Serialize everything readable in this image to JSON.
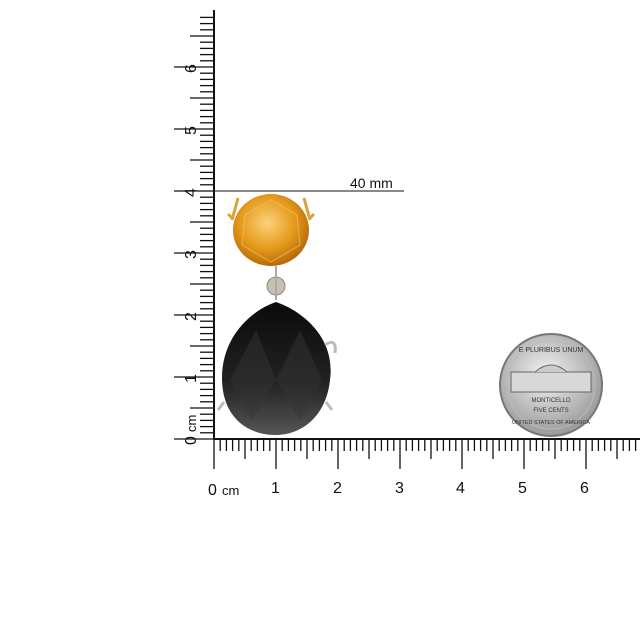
{
  "horizontal_ruler": {
    "unit_label": "cm",
    "labels": [
      "0",
      "1",
      "2",
      "3",
      "4",
      "5",
      "6"
    ]
  },
  "vertical_ruler": {
    "unit_label": "cm",
    "labels": [
      "0",
      "1",
      "2",
      "3",
      "4",
      "5",
      "6"
    ]
  },
  "measurement": {
    "label": "40 mm",
    "value_mm": 40
  },
  "coin": {
    "top_text": "E PLURIBUS UNUM",
    "middle_text": "MONTICELLO",
    "value_text": "FIVE CENTS",
    "bottom_text": "UNITED STATES OF AMERICA"
  },
  "colors": {
    "citrine": "#e59a1c",
    "onyx": "#141414",
    "metal": "#c8c8c8",
    "ruler": "#111111"
  }
}
